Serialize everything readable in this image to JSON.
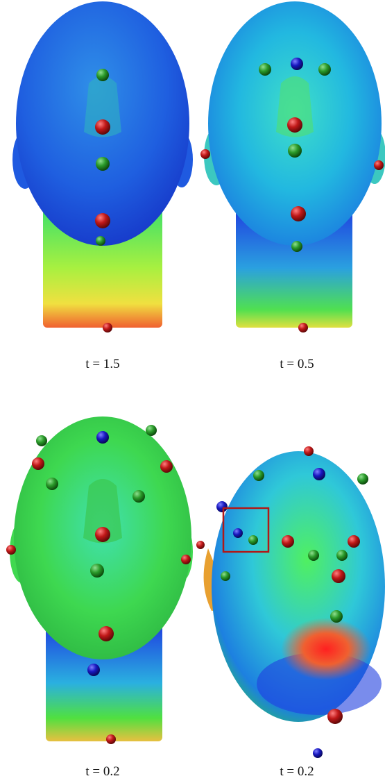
{
  "panels": [
    {
      "caption": "t = 1.5"
    },
    {
      "caption": "t = 0.5"
    },
    {
      "caption": "t = 0.2"
    },
    {
      "caption": "t = 0.2"
    }
  ]
}
